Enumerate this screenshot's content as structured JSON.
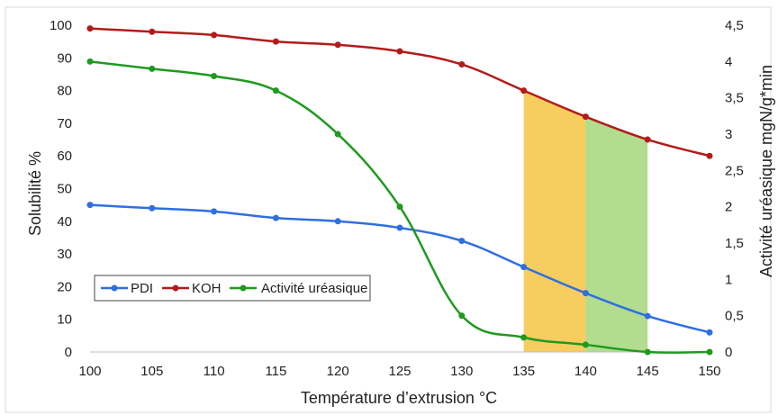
{
  "chart_data": {
    "type": "line",
    "x": [
      100,
      105,
      110,
      115,
      120,
      125,
      130,
      135,
      140,
      145,
      150
    ],
    "xlabel": "Température d’extrusion °C",
    "ylabel": "Solubilité  %",
    "y2label": "Activité uréasique  mgN/g*min",
    "xlim": [
      100,
      150
    ],
    "ylim": [
      0,
      100
    ],
    "y2lim": [
      0,
      4.5
    ],
    "x_ticks": [
      "100",
      "105",
      "110",
      "115",
      "120",
      "125",
      "130",
      "135",
      "140",
      "145",
      "150"
    ],
    "y_ticks": [
      "0",
      "10",
      "20",
      "30",
      "40",
      "50",
      "60",
      "70",
      "80",
      "90",
      "100"
    ],
    "y2_ticks": [
      "0",
      "0,5",
      "1",
      "1,5",
      "2",
      "2,5",
      "3",
      "3,5",
      "4",
      "4,5"
    ],
    "grid": false,
    "legend_position": "bottom-left",
    "series": [
      {
        "name": "PDI",
        "axis": "left",
        "color": "#2f6fe0",
        "values": [
          45,
          44,
          43,
          41,
          40,
          38,
          34,
          26,
          18,
          11,
          6
        ]
      },
      {
        "name": "KOH",
        "axis": "left",
        "color": "#b31b1b",
        "values": [
          99,
          98,
          97,
          95,
          94,
          92,
          88,
          80,
          72,
          65,
          60
        ]
      },
      {
        "name": "Activité uréasique",
        "axis": "right",
        "color": "#1f9a1f",
        "values": [
          4.0,
          3.9,
          3.8,
          3.6,
          3.0,
          2.0,
          0.5,
          0.2,
          0.1,
          0.0,
          0.0
        ]
      }
    ],
    "highlights": [
      {
        "x_range": [
          135,
          140
        ],
        "color": "#f6c443"
      },
      {
        "x_range": [
          140,
          145
        ],
        "color": "#a4d67a"
      }
    ]
  }
}
